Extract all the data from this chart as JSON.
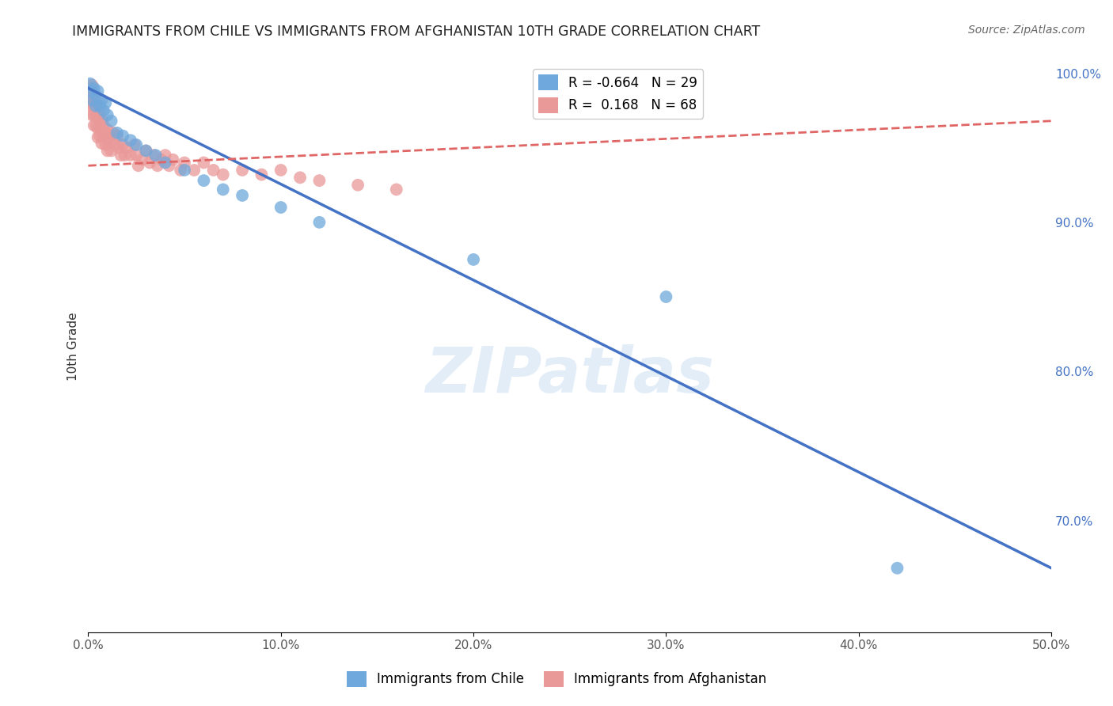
{
  "title": "IMMIGRANTS FROM CHILE VS IMMIGRANTS FROM AFGHANISTAN 10TH GRADE CORRELATION CHART",
  "source": "Source: ZipAtlas.com",
  "ylabel": "10th Grade",
  "xlim": [
    0.0,
    0.5
  ],
  "ylim": [
    0.625,
    1.008
  ],
  "xtick_labels": [
    "0.0%",
    "10.0%",
    "20.0%",
    "30.0%",
    "40.0%",
    "50.0%"
  ],
  "xtick_vals": [
    0.0,
    0.1,
    0.2,
    0.3,
    0.4,
    0.5
  ],
  "ytick_labels_right": [
    "100.0%",
    "90.0%",
    "80.0%",
    "70.0%"
  ],
  "ytick_vals_right": [
    1.0,
    0.9,
    0.8,
    0.7
  ],
  "legend_chile_label": "Immigrants from Chile",
  "legend_afghanistan_label": "Immigrants from Afghanistan",
  "chile_color": "#6fa8dc",
  "afghanistan_color": "#ea9999",
  "chile_line_color": "#4472c4",
  "afghanistan_line_color": "#e06666",
  "watermark": "ZIPatlas",
  "grid_color": "#cccccc",
  "chile_points_x": [
    0.001,
    0.002,
    0.002,
    0.003,
    0.004,
    0.004,
    0.005,
    0.006,
    0.007,
    0.008,
    0.009,
    0.01,
    0.012,
    0.015,
    0.018,
    0.022,
    0.025,
    0.03,
    0.035,
    0.04,
    0.05,
    0.06,
    0.07,
    0.08,
    0.1,
    0.12,
    0.2,
    0.3,
    0.42
  ],
  "chile_points_y": [
    0.993,
    0.988,
    0.982,
    0.99,
    0.985,
    0.978,
    0.988,
    0.978,
    0.982,
    0.975,
    0.98,
    0.972,
    0.968,
    0.96,
    0.958,
    0.955,
    0.952,
    0.948,
    0.945,
    0.94,
    0.935,
    0.928,
    0.922,
    0.918,
    0.91,
    0.9,
    0.875,
    0.85,
    0.668
  ],
  "afghanistan_points_x": [
    0.001,
    0.001,
    0.001,
    0.002,
    0.002,
    0.002,
    0.002,
    0.003,
    0.003,
    0.003,
    0.003,
    0.004,
    0.004,
    0.004,
    0.005,
    0.005,
    0.005,
    0.005,
    0.006,
    0.006,
    0.006,
    0.007,
    0.007,
    0.007,
    0.008,
    0.008,
    0.009,
    0.009,
    0.01,
    0.01,
    0.01,
    0.011,
    0.012,
    0.012,
    0.013,
    0.014,
    0.015,
    0.016,
    0.017,
    0.018,
    0.019,
    0.02,
    0.022,
    0.024,
    0.025,
    0.026,
    0.028,
    0.03,
    0.032,
    0.034,
    0.036,
    0.038,
    0.04,
    0.042,
    0.044,
    0.048,
    0.05,
    0.055,
    0.06,
    0.065,
    0.07,
    0.08,
    0.09,
    0.1,
    0.11,
    0.12,
    0.14,
    0.16
  ],
  "afghanistan_points_y": [
    0.99,
    0.985,
    0.98,
    0.992,
    0.985,
    0.978,
    0.972,
    0.985,
    0.978,
    0.972,
    0.965,
    0.98,
    0.972,
    0.965,
    0.978,
    0.97,
    0.963,
    0.957,
    0.972,
    0.965,
    0.958,
    0.968,
    0.96,
    0.953,
    0.965,
    0.958,
    0.96,
    0.952,
    0.962,
    0.955,
    0.948,
    0.958,
    0.955,
    0.948,
    0.96,
    0.952,
    0.958,
    0.95,
    0.945,
    0.952,
    0.945,
    0.95,
    0.945,
    0.952,
    0.945,
    0.938,
    0.942,
    0.948,
    0.94,
    0.945,
    0.938,
    0.942,
    0.945,
    0.938,
    0.942,
    0.935,
    0.94,
    0.935,
    0.94,
    0.935,
    0.932,
    0.935,
    0.932,
    0.935,
    0.93,
    0.928,
    0.925,
    0.922
  ],
  "chile_line_x": [
    0.0,
    0.5
  ],
  "chile_line_y": [
    0.99,
    0.668
  ],
  "afghanistan_line_x": [
    0.0,
    0.5
  ],
  "afghanistan_line_y": [
    0.938,
    0.968
  ]
}
